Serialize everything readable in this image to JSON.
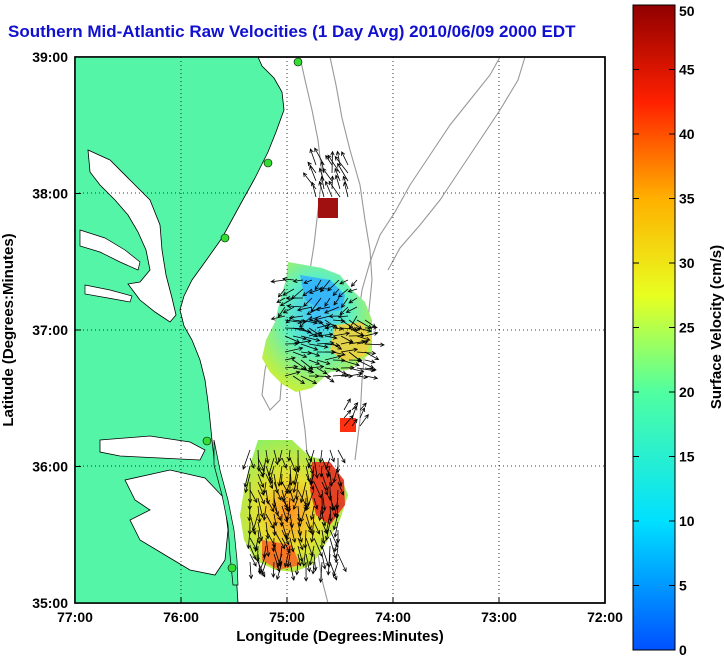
{
  "title": "Southern Mid-Atlantic Raw Velocities (1 Day Avg) 2010/06/09 2000 EDT",
  "xlabel": "Longitude (Degrees:Minutes)",
  "ylabel": "Latitude (Degrees:Minutes)",
  "colorbar_label": "Surface Velocity (cm/s)",
  "x_ticks": [
    "77:00",
    "76:00",
    "75:00",
    "74:00",
    "73:00",
    "72:00"
  ],
  "y_ticks": [
    "39:00",
    "38:00",
    "37:00",
    "36:00",
    "35:00"
  ],
  "colorbar_ticks": [
    "50",
    "45",
    "40",
    "35",
    "30",
    "25",
    "20",
    "15",
    "10",
    "5",
    "0"
  ],
  "colors": {
    "land": "#55f5a8",
    "title": "#1010d0",
    "station": "#33dd33",
    "bathymetry": "#999999"
  },
  "chart_data": {
    "type": "map",
    "lon_range": [
      -77.0,
      -72.0
    ],
    "lat_range": [
      35.0,
      39.0
    ],
    "color_range": [
      0,
      50
    ],
    "grid": true,
    "velocity_fields": [
      {
        "name": "north-cell",
        "lon": -74.65,
        "lat": 37.9
      },
      {
        "name": "central-field",
        "lon": -74.8,
        "lat": 36.9
      },
      {
        "name": "small-east-cell",
        "lon": -74.5,
        "lat": 36.3
      },
      {
        "name": "southern-field",
        "lon": -74.9,
        "lat": 35.6
      }
    ]
  }
}
